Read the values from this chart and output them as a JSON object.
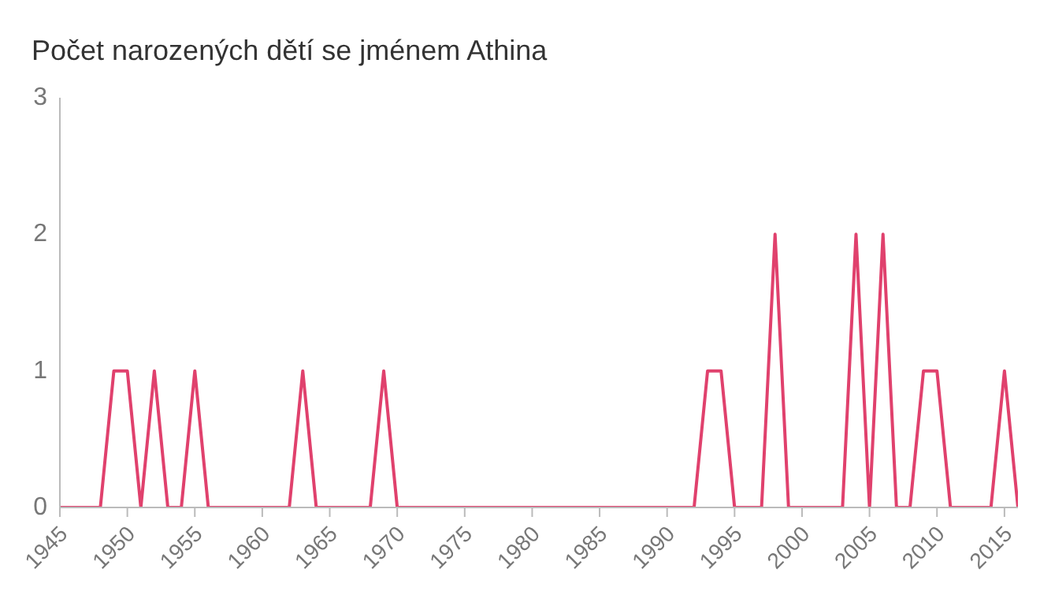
{
  "chart_data": {
    "type": "line",
    "title": "Počet narozených dětí se jménem Athina",
    "x": [
      1945,
      1946,
      1947,
      1948,
      1949,
      1950,
      1951,
      1952,
      1953,
      1954,
      1955,
      1956,
      1957,
      1958,
      1959,
      1960,
      1961,
      1962,
      1963,
      1964,
      1965,
      1966,
      1967,
      1968,
      1969,
      1970,
      1971,
      1972,
      1973,
      1974,
      1975,
      1976,
      1977,
      1978,
      1979,
      1980,
      1981,
      1982,
      1983,
      1984,
      1985,
      1986,
      1987,
      1988,
      1989,
      1990,
      1991,
      1992,
      1993,
      1994,
      1995,
      1996,
      1997,
      1998,
      1999,
      2000,
      2001,
      2002,
      2003,
      2004,
      2005,
      2006,
      2007,
      2008,
      2009,
      2010,
      2011,
      2012,
      2013,
      2014,
      2015,
      2016
    ],
    "series": [
      {
        "color": "#e0416d",
        "values": [
          0,
          0,
          0,
          0,
          1,
          1,
          0,
          1,
          0,
          0,
          1,
          0,
          0,
          0,
          0,
          0,
          0,
          0,
          1,
          0,
          0,
          0,
          0,
          0,
          1,
          0,
          0,
          0,
          0,
          0,
          0,
          0,
          0,
          0,
          0,
          0,
          0,
          0,
          0,
          0,
          0,
          0,
          0,
          0,
          0,
          0,
          0,
          0,
          1,
          1,
          0,
          0,
          0,
          2,
          0,
          0,
          0,
          0,
          0,
          2,
          0,
          2,
          0,
          0,
          1,
          1,
          0,
          0,
          0,
          0,
          1,
          0
        ]
      }
    ],
    "xlim": [
      1945,
      2016
    ],
    "xticks": [
      1945,
      1950,
      1955,
      1960,
      1965,
      1970,
      1975,
      1980,
      1985,
      1990,
      1995,
      2000,
      2005,
      2010,
      2015
    ],
    "ylim": [
      0,
      3
    ],
    "yticks": [
      0,
      1,
      2,
      3
    ],
    "grid": false,
    "legend": false,
    "marker": "none",
    "line_style": "solid"
  }
}
